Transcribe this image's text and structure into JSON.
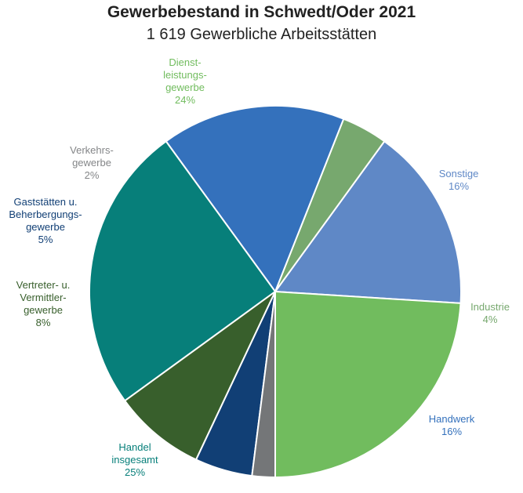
{
  "chart_data": {
    "type": "pie",
    "title": "Gewerbebestand in Schwedt/Oder 2021",
    "subtitle": "1 619 Gewerbliche Arbeitsstätten",
    "slices": [
      {
        "name": "Sonstige",
        "label_lines": [
          "Sonstige"
        ],
        "value": 16,
        "value_label": "16%",
        "color": "#5f88c6",
        "label_color": "#5f88c6"
      },
      {
        "name": "Industrie",
        "label_lines": [
          "Industrie"
        ],
        "value": 4,
        "value_label": "4%",
        "color": "#77a86e",
        "label_color": "#77a86e"
      },
      {
        "name": "Handwerk",
        "label_lines": [
          "Handwerk"
        ],
        "value": 16,
        "value_label": "16%",
        "color": "#3471bc",
        "label_color": "#3471bc"
      },
      {
        "name": "Handel insgesamt",
        "label_lines": [
          "Handel",
          "insgesamt"
        ],
        "value": 25,
        "value_label": "25%",
        "color": "#077f7a",
        "label_color": "#077f7a"
      },
      {
        "name": "Vertreter- u. Vermittler-gewerbe",
        "label_lines": [
          "Vertreter- u.",
          "Vermittler-",
          "gewerbe"
        ],
        "value": 8,
        "value_label": "8%",
        "color": "#385f2c",
        "label_color": "#385f2c"
      },
      {
        "name": "Gaststätten u. Beherbergungs-gewerbe",
        "label_lines": [
          "Gaststätten u.",
          "Beherbergungs-",
          "gewerbe"
        ],
        "value": 5,
        "value_label": "5%",
        "color": "#113f75",
        "label_color": "#113f75"
      },
      {
        "name": "Verkehrs-gewerbe",
        "label_lines": [
          "Verkehrs-",
          "gewerbe"
        ],
        "value": 2,
        "value_label": "2%",
        "color": "#747678",
        "label_color": "#848688"
      },
      {
        "name": "Dienst-leistungs-gewerbe",
        "label_lines": [
          "Dienst-",
          "leistungs-",
          "gewerbe"
        ],
        "value": 24,
        "value_label": "24%",
        "color": "#71bc5e",
        "label_color": "#71bc5e"
      }
    ]
  }
}
